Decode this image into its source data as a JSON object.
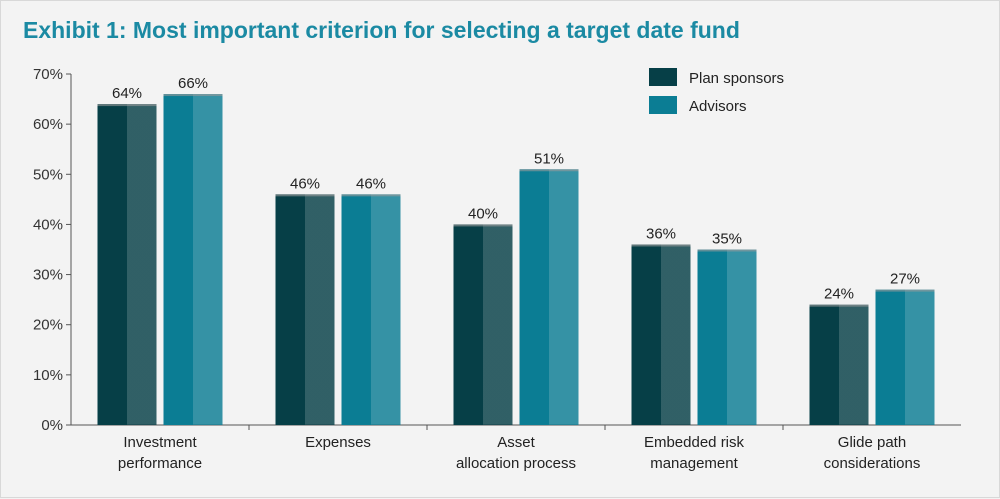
{
  "title": "Exhibit 1: Most important criterion for selecting a target date fund",
  "colors": {
    "plan_sponsors": "#063f47",
    "advisors": "#0b7d94",
    "title": "#1b8aa3"
  },
  "chart_data": {
    "type": "bar",
    "title": "Exhibit 1: Most important criterion for selecting a target date fund",
    "xlabel": "",
    "ylabel": "",
    "ylim": [
      0,
      70
    ],
    "yticks": [
      "0%",
      "10%",
      "20%",
      "30%",
      "40%",
      "50%",
      "60%",
      "70%"
    ],
    "grid": false,
    "legend_position": "top-right",
    "categories": [
      [
        "Investment",
        "performance"
      ],
      [
        "Expenses"
      ],
      [
        "Asset",
        "allocation process"
      ],
      [
        "Embedded risk",
        "management"
      ],
      [
        "Glide path",
        "considerations"
      ]
    ],
    "series": [
      {
        "name": "Plan sponsors",
        "values": [
          64,
          46,
          40,
          36,
          24
        ],
        "labels": [
          "64%",
          "46%",
          "40%",
          "36%",
          "24%"
        ]
      },
      {
        "name": "Advisors",
        "values": [
          66,
          46,
          51,
          35,
          27
        ],
        "labels": [
          "66%",
          "46%",
          "51%",
          "35%",
          "27%"
        ]
      }
    ]
  }
}
